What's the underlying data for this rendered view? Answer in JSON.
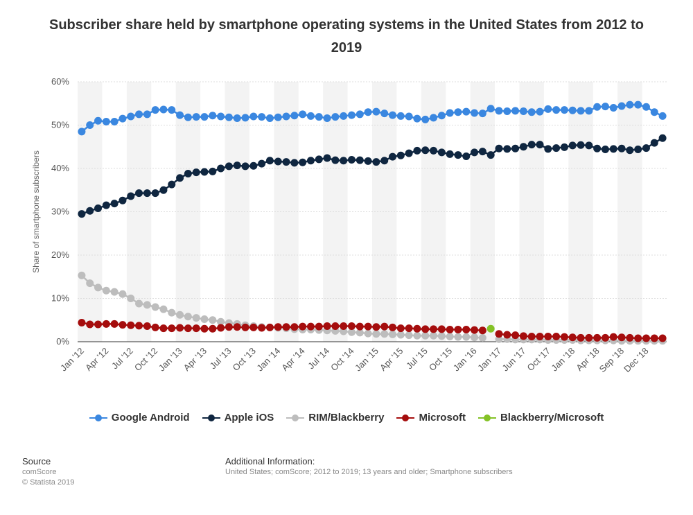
{
  "title": "Subscriber share held by smartphone operating systems in the United States from 2012 to 2019",
  "colors": {
    "android": "#3a87e0",
    "ios": "#0f2640",
    "rim": "#bdbdbd",
    "microsoft": "#a50d0d",
    "bbms": "#84c226",
    "grid": "#dddddd",
    "band": "#f3f3f3"
  },
  "chart_data": {
    "type": "line",
    "title": "Subscriber share held by smartphone operating systems in the United States from 2012 to 2019",
    "xlabel": "",
    "ylabel": "Share of smartphone subscribers",
    "ylim": [
      0,
      60
    ],
    "yticks": [
      "0%",
      "10%",
      "20%",
      "30%",
      "40%",
      "50%",
      "60%"
    ],
    "xtick_labels": [
      "Jan '12",
      "Apr '12",
      "Jul '12",
      "Oct '12",
      "Jan '13",
      "Apr '13",
      "Jul '13",
      "Oct '13",
      "Jan '14",
      "Apr '14",
      "Jul '14",
      "Oct '14",
      "Jan '15",
      "Apr '15",
      "Jul '15",
      "Oct '15",
      "Jan '16",
      "Jan '17",
      "Jun '17",
      "Oct '17",
      "Jan '18",
      "Apr '18",
      "Sep '18",
      "Dec '18"
    ],
    "grid": true,
    "legend_position": "bottom",
    "series": [
      {
        "name": "Google Android",
        "values": [
          48.5,
          50,
          51,
          50.8,
          50.8,
          51.5,
          52,
          52.5,
          52.5,
          53.5,
          53.6,
          53.5,
          52.3,
          51.8,
          51.9,
          51.9,
          52.2,
          52,
          51.8,
          51.6,
          51.7,
          52,
          51.9,
          51.6,
          51.8,
          52,
          52.2,
          52.5,
          52.1,
          51.9,
          51.6,
          51.9,
          52.1,
          52.3,
          52.5,
          53,
          53.1,
          52.7,
          52.3,
          52.1,
          52,
          51.5,
          51.3,
          51.7,
          52.2,
          52.8,
          53,
          53.1,
          52.8,
          52.7,
          53.8,
          53.3,
          53.2,
          53.3,
          53.2,
          53,
          53.1,
          53.7,
          53.5,
          53.5,
          53.4,
          53.3,
          53.3,
          54.2,
          54.3,
          54,
          54.4,
          54.7,
          54.7,
          54.2,
          53,
          52.1
        ]
      },
      {
        "name": "Apple iOS",
        "values": [
          29.5,
          30.2,
          30.8,
          31.5,
          31.9,
          32.6,
          33.6,
          34.3,
          34.3,
          34.3,
          35,
          36.3,
          37.8,
          38.8,
          39.1,
          39.2,
          39.3,
          40,
          40.5,
          40.7,
          40.5,
          40.6,
          41.1,
          41.8,
          41.6,
          41.5,
          41.3,
          41.4,
          41.8,
          42.1,
          42.4,
          41.9,
          41.8,
          42,
          41.9,
          41.7,
          41.5,
          41.8,
          42.7,
          43,
          43.5,
          44.1,
          44.2,
          44.1,
          43.7,
          43.3,
          43.1,
          42.8,
          43.7,
          43.9,
          43.1,
          44.6,
          44.5,
          44.6,
          45,
          45.5,
          45.5,
          44.5,
          44.7,
          44.9,
          45.3,
          45.4,
          45.3,
          44.6,
          44.4,
          44.5,
          44.6,
          44.2,
          44.4,
          44.7,
          45.9,
          47
        ]
      },
      {
        "name": "RIM/Blackberry",
        "values": [
          15.3,
          13.5,
          12.5,
          11.8,
          11.5,
          11,
          10,
          8.8,
          8.5,
          8,
          7.5,
          6.7,
          6.2,
          5.8,
          5.5,
          5.2,
          5,
          4.6,
          4.3,
          4.1,
          3.8,
          3.6,
          3.4,
          3.3,
          3.2,
          3.1,
          2.9,
          2.8,
          2.8,
          2.7,
          2.6,
          2.5,
          2.4,
          2.2,
          2.1,
          1.9,
          1.8,
          1.8,
          1.7,
          1.6,
          1.5,
          1.4,
          1.4,
          1.4,
          1.3,
          1.2,
          1.1,
          1.1,
          1,
          0.9,
          null,
          0.6,
          0.6,
          0.5,
          0.5,
          0.5,
          0.5,
          0.4,
          0.4,
          0.4,
          0.4,
          0.3,
          0.3,
          0.3,
          0.3,
          0.3,
          0.2,
          0.2,
          0.2,
          0.2,
          0.2,
          0.2
        ]
      },
      {
        "name": "Microsoft",
        "values": [
          4.4,
          4,
          4,
          4.1,
          4.1,
          3.9,
          3.8,
          3.7,
          3.6,
          3.3,
          3.1,
          3.1,
          3.2,
          3.1,
          3.1,
          3,
          3,
          3.2,
          3.4,
          3.4,
          3.3,
          3.3,
          3.2,
          3.3,
          3.4,
          3.4,
          3.4,
          3.5,
          3.5,
          3.5,
          3.6,
          3.6,
          3.6,
          3.6,
          3.5,
          3.5,
          3.4,
          3.5,
          3.3,
          3.1,
          3.1,
          3,
          2.9,
          2.9,
          2.9,
          2.8,
          2.8,
          2.8,
          2.7,
          2.6,
          null,
          1.8,
          1.6,
          1.5,
          1.3,
          1.2,
          1.2,
          1.2,
          1.2,
          1.1,
          1,
          0.9,
          0.9,
          0.9,
          0.9,
          1.1,
          1,
          0.9,
          0.8,
          0.8,
          0.8,
          0.8
        ]
      },
      {
        "name": "Blackberry/Microsoft",
        "values": [
          null,
          null,
          null,
          null,
          null,
          null,
          null,
          null,
          null,
          null,
          null,
          null,
          null,
          null,
          null,
          null,
          null,
          null,
          null,
          null,
          null,
          null,
          null,
          null,
          null,
          null,
          null,
          null,
          null,
          null,
          null,
          null,
          null,
          null,
          null,
          null,
          null,
          null,
          null,
          null,
          null,
          null,
          null,
          null,
          null,
          null,
          null,
          null,
          null,
          null,
          3,
          null,
          null,
          null,
          null,
          null,
          null,
          null,
          null,
          null,
          null,
          null,
          null,
          null,
          null,
          null,
          null,
          null,
          null,
          null,
          null,
          null
        ]
      }
    ]
  },
  "legend": {
    "android": "Google Android",
    "ios": "Apple iOS",
    "rim": "RIM/Blackberry",
    "microsoft": "Microsoft",
    "bbms": "Blackberry/Microsoft"
  },
  "footer": {
    "source_label": "Source",
    "source_name": "comScore",
    "copyright": "© Statista 2019",
    "info_label": "Additional Information:",
    "info_text": "United States; comScore; 2012 to 2019; 13 years and older; Smartphone subscribers"
  }
}
